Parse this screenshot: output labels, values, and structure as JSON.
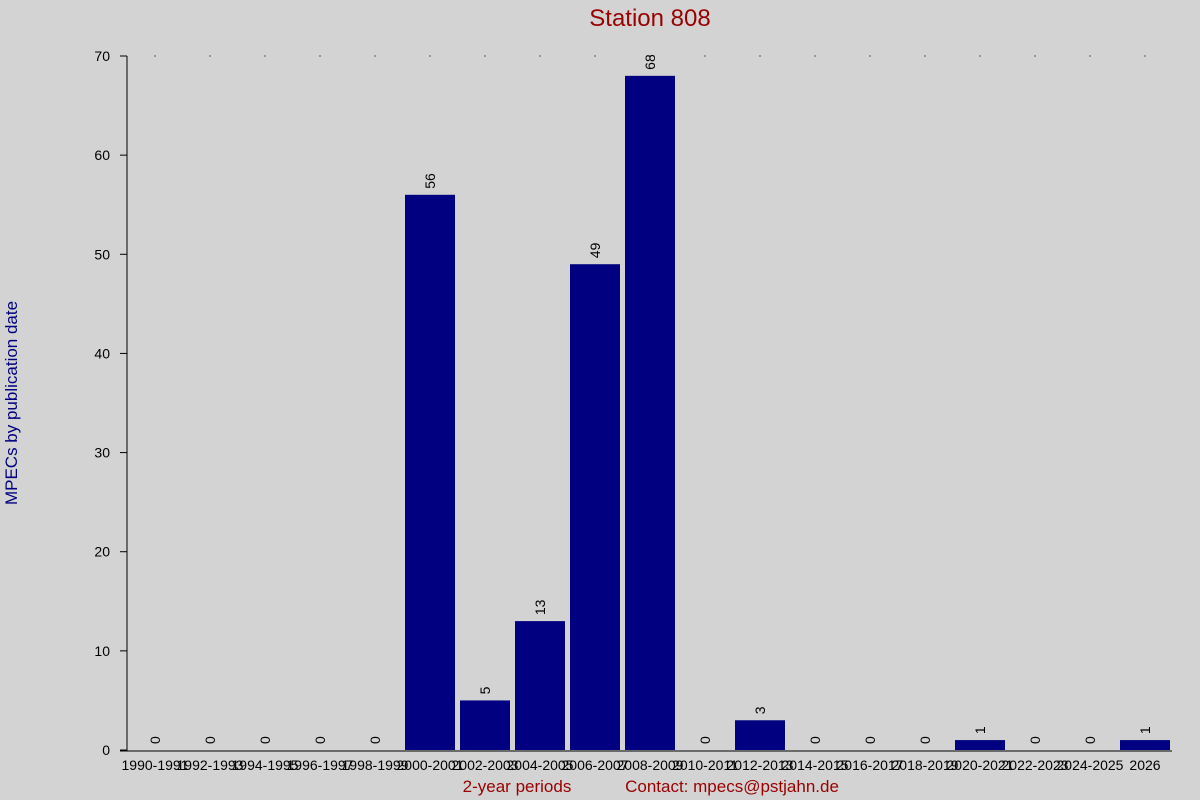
{
  "chart_data": {
    "type": "bar",
    "title": "Station 808",
    "x_label": "2-year periods",
    "y_label": "MPECs by publication date",
    "footer": "Contact: mpecs@pstjahn.de",
    "categories": [
      "1990-1991",
      "1992-1993",
      "1994-1995",
      "1996-1997",
      "1998-1999",
      "2000-2001",
      "2002-2003",
      "2004-2005",
      "2006-2007",
      "2008-2009",
      "2010-2011",
      "2012-2013",
      "2014-2015",
      "2016-2017",
      "2018-2019",
      "2020-2021",
      "2022-2023",
      "2024-2025",
      "2026"
    ],
    "values": [
      0,
      0,
      0,
      0,
      0,
      56,
      5,
      13,
      49,
      68,
      0,
      3,
      0,
      0,
      0,
      1,
      0,
      0,
      1
    ],
    "color": "#000080",
    "ylim": [
      0,
      70
    ],
    "yticks": [
      0,
      10,
      20,
      30,
      40,
      50,
      60,
      70
    ],
    "grid": false
  }
}
